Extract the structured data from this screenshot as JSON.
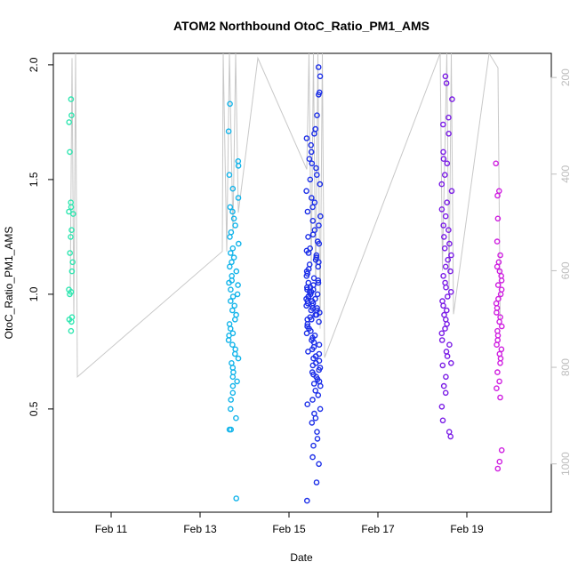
{
  "chart_data": {
    "type": "scatter",
    "title": "ATOM2 Northbound OtoC_Ratio_PM1_AMS",
    "xlabel": "Date",
    "ylabel": "OtoC_Ratio_PM1_AMS",
    "x_ticks": [
      "Feb 11",
      "Feb 13",
      "Feb 15",
      "Feb 17",
      "Feb 19"
    ],
    "y_ticks": [
      "0.5",
      "1.0",
      "1.5",
      "2.0"
    ],
    "y2_ticks": [
      "200",
      "400",
      "600",
      "800",
      "1000"
    ],
    "xlim_days_feb": [
      9.7,
      20.9
    ],
    "ylim": [
      0.05,
      2.05
    ],
    "y2lim": [
      150,
      1100
    ],
    "y2_inverted": true,
    "grid": false,
    "legend": "none",
    "colors": {
      "teal": "#2ee6b0",
      "cyan": "#12b4ea",
      "blue": "#1b2ee8",
      "purple": "#7a1be6",
      "magenta": "#cf1de0",
      "altitude_line": "#c8c8c8",
      "right_axis": "#bdbdbd"
    },
    "clusters": [
      {
        "color": "#2ee6b0",
        "x_center": 10.1,
        "x_spread": 0.06,
        "y_values": [
          1.85,
          1.78,
          1.75,
          1.62,
          1.4,
          1.38,
          1.36,
          1.35,
          1.28,
          1.25,
          1.18,
          1.14,
          1.1,
          1.02,
          1.01,
          1.0,
          0.9,
          0.89,
          0.88,
          0.84
        ]
      },
      {
        "color": "#12b4ea",
        "x_center": 13.75,
        "x_spread": 0.12,
        "y_values": [
          1.83,
          1.71,
          1.58,
          1.56,
          1.52,
          1.46,
          1.42,
          1.38,
          1.36,
          1.33,
          1.3,
          1.27,
          1.25,
          1.22,
          1.2,
          1.18,
          1.16,
          1.14,
          1.12,
          1.1,
          1.08,
          1.06,
          1.05,
          1.04,
          1.02,
          1.0,
          0.99,
          0.97,
          0.95,
          0.93,
          0.91,
          0.89,
          0.87,
          0.85,
          0.83,
          0.82,
          0.8,
          0.78,
          0.76,
          0.74,
          0.72,
          0.7,
          0.68,
          0.66,
          0.64,
          0.62,
          0.6,
          0.57,
          0.54,
          0.5,
          0.46,
          0.41,
          0.41,
          0.11
        ]
      },
      {
        "color": "#1b2ee8",
        "x_center": 15.55,
        "x_spread": 0.16,
        "y_values": [
          1.99,
          1.95,
          1.88,
          1.87,
          1.78,
          1.72,
          1.7,
          1.68,
          1.65,
          1.62,
          1.59,
          1.57,
          1.55,
          1.52,
          1.5,
          1.48,
          1.45,
          1.42,
          1.4,
          1.38,
          1.36,
          1.34,
          1.32,
          1.3,
          1.28,
          1.26,
          1.25,
          1.23,
          1.22,
          1.2,
          1.19,
          1.18,
          1.17,
          1.16,
          1.15,
          1.14,
          1.13,
          1.12,
          1.11,
          1.1,
          1.09,
          1.08,
          1.07,
          1.06,
          1.05,
          1.05,
          1.04,
          1.03,
          1.03,
          1.02,
          1.02,
          1.01,
          1.01,
          1.0,
          1.0,
          0.99,
          0.99,
          0.98,
          0.98,
          0.97,
          0.97,
          0.96,
          0.96,
          0.95,
          0.95,
          0.94,
          0.94,
          0.93,
          0.93,
          0.92,
          0.91,
          0.91,
          0.9,
          0.89,
          0.89,
          0.88,
          0.87,
          0.86,
          0.85,
          0.84,
          0.83,
          0.82,
          0.81,
          0.8,
          0.79,
          0.78,
          0.77,
          0.76,
          0.75,
          0.74,
          0.73,
          0.72,
          0.71,
          0.7,
          0.69,
          0.68,
          0.67,
          0.66,
          0.65,
          0.64,
          0.63,
          0.62,
          0.61,
          0.6,
          0.58,
          0.56,
          0.54,
          0.52,
          0.5,
          0.48,
          0.46,
          0.44,
          0.4,
          0.37,
          0.34,
          0.29,
          0.26,
          0.18,
          0.1
        ]
      },
      {
        "color": "#7a1be6",
        "x_center": 18.55,
        "x_spread": 0.12,
        "y_values": [
          1.95,
          1.92,
          1.85,
          1.77,
          1.74,
          1.7,
          1.62,
          1.59,
          1.57,
          1.52,
          1.48,
          1.45,
          1.4,
          1.37,
          1.34,
          1.3,
          1.28,
          1.25,
          1.22,
          1.2,
          1.17,
          1.15,
          1.12,
          1.1,
          1.08,
          1.05,
          1.03,
          1.01,
          0.99,
          0.97,
          0.95,
          0.93,
          0.91,
          0.89,
          0.87,
          0.85,
          0.83,
          0.8,
          0.78,
          0.75,
          0.73,
          0.7,
          0.69,
          0.64,
          0.6,
          0.57,
          0.51,
          0.45,
          0.4,
          0.38
        ]
      },
      {
        "color": "#cf1de0",
        "x_center": 19.72,
        "x_spread": 0.07,
        "y_values": [
          1.57,
          1.45,
          1.43,
          1.33,
          1.23,
          1.17,
          1.14,
          1.12,
          1.1,
          1.08,
          1.06,
          1.04,
          1.02,
          1.0,
          0.98,
          0.96,
          0.94,
          0.92,
          0.9,
          0.88,
          0.86,
          0.84,
          0.82,
          0.8,
          0.78,
          0.76,
          0.74,
          0.72,
          0.7,
          0.66,
          0.62,
          0.59,
          0.55,
          0.32,
          0.27,
          0.24
        ]
      }
    ],
    "altitude_series": {
      "axis": "right",
      "points": [
        [
          10.08,
          640
        ],
        [
          10.12,
          160
        ],
        [
          10.16,
          700
        ],
        [
          10.2,
          150
        ],
        [
          10.24,
          820
        ],
        [
          13.5,
          560
        ],
        [
          13.52,
          150
        ],
        [
          13.6,
          560
        ],
        [
          13.66,
          150
        ],
        [
          13.74,
          520
        ],
        [
          13.8,
          150
        ],
        [
          13.86,
          480
        ],
        [
          14.3,
          160
        ],
        [
          15.4,
          390
        ],
        [
          15.45,
          150
        ],
        [
          15.5,
          600
        ],
        [
          15.55,
          150
        ],
        [
          15.6,
          650
        ],
        [
          15.65,
          150
        ],
        [
          15.7,
          720
        ],
        [
          15.75,
          150
        ],
        [
          15.8,
          780
        ],
        [
          18.4,
          150
        ],
        [
          18.45,
          600
        ],
        [
          18.55,
          150
        ],
        [
          18.6,
          650
        ],
        [
          18.65,
          150
        ],
        [
          18.7,
          690
        ],
        [
          19.5,
          150
        ],
        [
          19.7,
          180
        ],
        [
          19.75,
          700
        ]
      ]
    }
  }
}
